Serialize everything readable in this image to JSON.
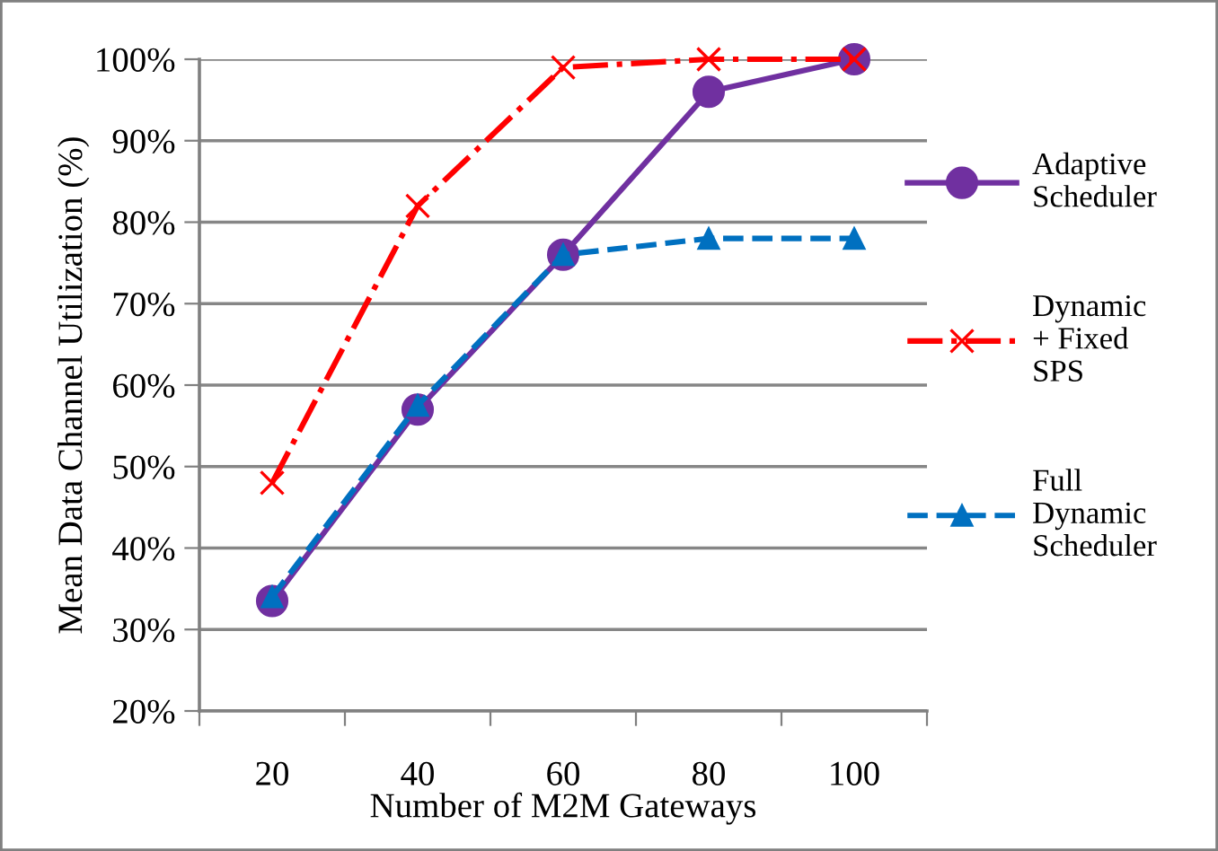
{
  "chart_data": {
    "type": "line",
    "xlabel": "Number of M2M Gateways",
    "ylabel": "Mean Data Channel Utilization (%)",
    "categories": [
      "20",
      "40",
      "60",
      "80",
      "100"
    ],
    "ylim": [
      20,
      100
    ],
    "yticks": [
      {
        "value": 20,
        "label": "20%"
      },
      {
        "value": 30,
        "label": "30%"
      },
      {
        "value": 40,
        "label": "40%"
      },
      {
        "value": 50,
        "label": "50%"
      },
      {
        "value": 60,
        "label": "60%"
      },
      {
        "value": 70,
        "label": "70%"
      },
      {
        "value": 80,
        "label": "80%"
      },
      {
        "value": 90,
        "label": "90%"
      },
      {
        "value": 100,
        "label": "100%"
      }
    ],
    "grid": "y",
    "legend": "right",
    "series": [
      {
        "name": "Adaptive Scheduler",
        "color": "#7030a0",
        "marker": "circle",
        "line_style": "solid",
        "values": [
          33.5,
          57,
          76,
          96,
          100
        ]
      },
      {
        "name": "Dynamic + Fixed SPS",
        "color": "#ff0000",
        "marker": "cross",
        "line_style": "dashdot",
        "values": [
          48,
          82,
          99,
          100,
          100
        ]
      },
      {
        "name": "Full Dynamic Scheduler",
        "color": "#0070c0",
        "marker": "triangle",
        "line_style": "dashed",
        "values": [
          34,
          57.5,
          76,
          78,
          78
        ]
      }
    ]
  }
}
